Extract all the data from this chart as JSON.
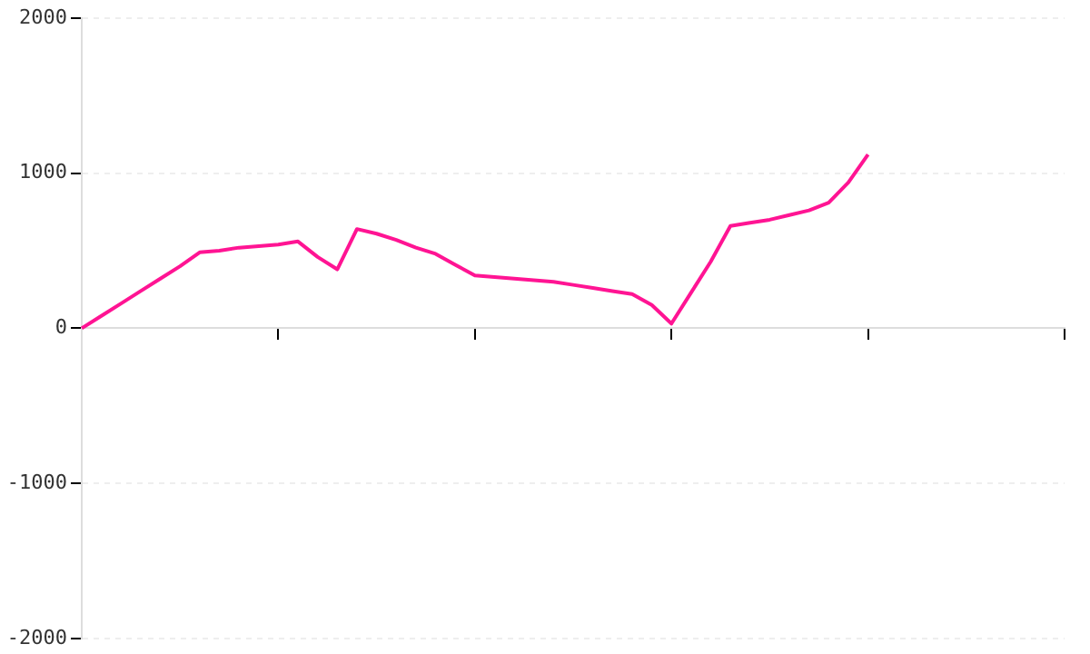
{
  "chart_data": {
    "type": "line",
    "categories": [
      null,
      null,
      null,
      null,
      null,
      null,
      null,
      null,
      null,
      null,
      null,
      null,
      null,
      null,
      null,
      null,
      null,
      null,
      null,
      null,
      null,
      null,
      null,
      null,
      null,
      null,
      null,
      null,
      null,
      null,
      null,
      null,
      null,
      null,
      null,
      null,
      null,
      null,
      null,
      null,
      null,
      null,
      null,
      null,
      null,
      null,
      null,
      null,
      null,
      null,
      null
    ],
    "series": [
      {
        "color": "#ff1493",
        "values": [
          0,
          80,
          160,
          240,
          320,
          400,
          490,
          500,
          520,
          530,
          540,
          560,
          460,
          380,
          640,
          610,
          570,
          520,
          480,
          410,
          340,
          330,
          320,
          310,
          300,
          280,
          260,
          240,
          220,
          150,
          30,
          230,
          430,
          660,
          680,
          700,
          730,
          760,
          810,
          940,
          1120,
          null,
          null,
          null,
          null,
          null,
          null,
          null,
          null,
          null,
          null
        ]
      }
    ],
    "ylim": [
      -2000,
      2000
    ],
    "yticks": [
      -2000,
      -1000,
      0,
      1000,
      2000
    ],
    "grid": "y",
    "tick_labels": "y",
    "marker": "none",
    "line_style": "solid",
    "legend": false
  }
}
